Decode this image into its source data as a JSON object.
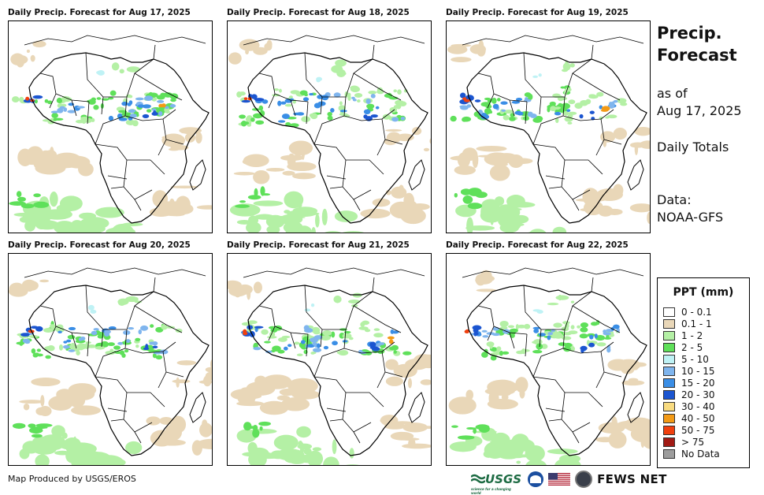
{
  "panels": [
    {
      "title": "Daily Precip. Forecast for Aug 17, 2025"
    },
    {
      "title": "Daily Precip. Forecast for Aug 18, 2025"
    },
    {
      "title": "Daily Precip. Forecast for Aug 19, 2025"
    },
    {
      "title": "Daily Precip. Forecast for Aug 20, 2025"
    },
    {
      "title": "Daily Precip. Forecast for Aug 21, 2025"
    },
    {
      "title": "Daily Precip. Forecast for Aug 22, 2025"
    }
  ],
  "side": {
    "title_line1": "Precip.",
    "title_line2": "Forecast",
    "asof_line1": "as of",
    "asof_line2": "Aug 17, 2025",
    "totals": "Daily Totals",
    "data_line1": "Data:",
    "data_line2": "NOAA-GFS"
  },
  "legend": {
    "title": "PPT (mm)",
    "items": [
      {
        "label": "0 - 0.1",
        "color": "#ffffff"
      },
      {
        "label": "0.1 - 1",
        "color": "#e9d7b8"
      },
      {
        "label": "1 - 2",
        "color": "#b4f0a5"
      },
      {
        "label": "2 - 5",
        "color": "#5fe05a"
      },
      {
        "label": "5 - 10",
        "color": "#bff2f5"
      },
      {
        "label": "10 - 15",
        "color": "#7fb5ee"
      },
      {
        "label": "15 - 20",
        "color": "#3a8ee6"
      },
      {
        "label": "20 - 30",
        "color": "#1b55d0"
      },
      {
        "label": "30 - 40",
        "color": "#f8db80"
      },
      {
        "label": "40 - 50",
        "color": "#f39a16"
      },
      {
        "label": "50 - 75",
        "color": "#f0400e"
      },
      {
        "label": "> 75",
        "color": "#a11a14"
      },
      {
        "label": "No Data",
        "color": "#9d9d9d"
      }
    ]
  },
  "footer": {
    "credit": "Map Produced by USGS/EROS",
    "usgs": "USGS",
    "usgs_tagline": "science for a changing world",
    "fews": "FEWS NET"
  }
}
